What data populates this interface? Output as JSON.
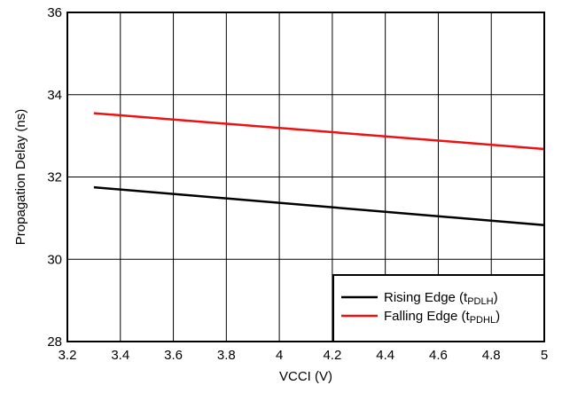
{
  "chart_data": {
    "type": "line",
    "xlabel": "VCCI (V)",
    "ylabel": "Propagation Delay (ns)",
    "xlim": [
      3.2,
      5.0
    ],
    "ylim": [
      28,
      36
    ],
    "xticks": [
      "3.2",
      "3.4",
      "3.6",
      "3.8",
      "4",
      "4.2",
      "4.4",
      "4.6",
      "4.8",
      "5"
    ],
    "yticks": [
      "28",
      "30",
      "32",
      "34",
      "36"
    ],
    "grid": true,
    "legend_position": "bottom-right",
    "series": [
      {
        "name": "Rising Edge (tPDLH)",
        "name_main": "Rising Edge (t",
        "name_sub": "PDLH",
        "name_end": ")",
        "color": "#000000",
        "x": [
          3.3,
          5.0
        ],
        "y": [
          31.75,
          30.83
        ]
      },
      {
        "name": "Falling Edge (tPDHL)",
        "name_main": "Falling Edge (t",
        "name_sub": "PDHL",
        "name_end": ")",
        "color": "#ee1111",
        "x": [
          3.3,
          5.0
        ],
        "y": [
          33.55,
          32.68
        ]
      }
    ]
  }
}
